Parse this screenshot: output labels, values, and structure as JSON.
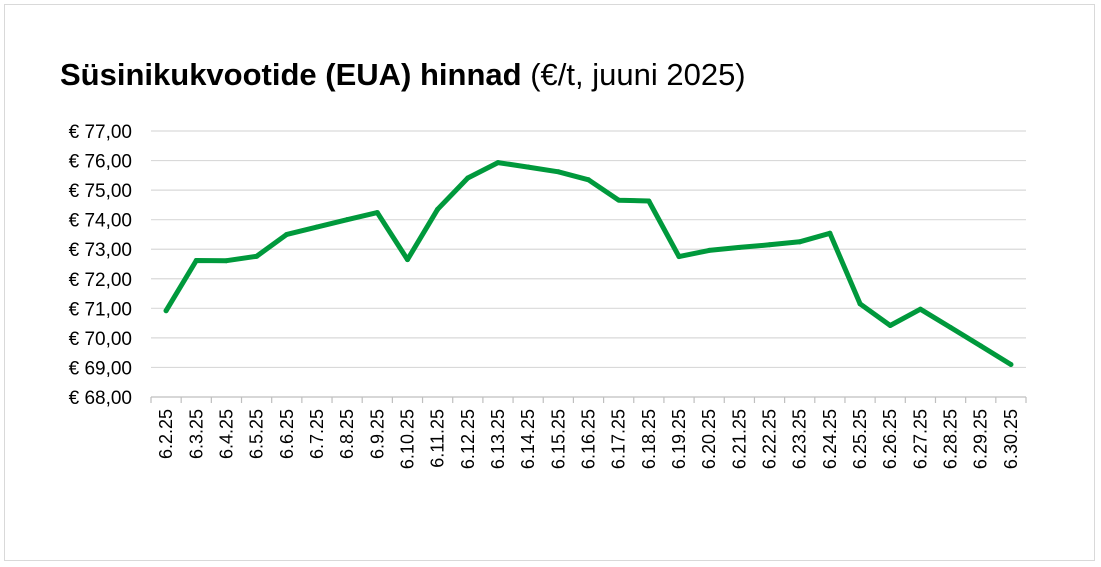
{
  "chart_data": {
    "type": "line",
    "title": "Süsinikukvootide (EUA) hinnad",
    "subtitle": "(€/t, juuni 2025)",
    "xlabel": "",
    "ylabel": "",
    "ylim": [
      68,
      77
    ],
    "y_ticks": [
      "€ 68,00",
      "€ 69,00",
      "€ 70,00",
      "€ 71,00",
      "€ 72,00",
      "€ 73,00",
      "€ 74,00",
      "€ 75,00",
      "€ 76,00",
      "€ 77,00"
    ],
    "categories": [
      "6.2.25",
      "6.3.25",
      "6.4.25",
      "6.5.25",
      "6.6.25",
      "6.7.25",
      "6.8.25",
      "6.9.25",
      "6.10.25",
      "6.11.25",
      "6.12.25",
      "6.13.25",
      "6.14.25",
      "6.15.25",
      "6.16.25",
      "6.17.25",
      "6.18.25",
      "6.19.25",
      "6.20.25",
      "6.21.25",
      "6.22.25",
      "6.23.25",
      "6.24.25",
      "6.25.25",
      "6.26.25",
      "6.27.25",
      "6.28.25",
      "6.29.25",
      "6.30.25"
    ],
    "series": [
      {
        "color": "#00993c",
        "values": [
          70.92,
          72.62,
          72.61,
          72.76,
          73.5,
          73.75,
          74.0,
          74.24,
          72.65,
          74.35,
          75.41,
          75.93,
          75.78,
          75.62,
          75.35,
          74.66,
          74.63,
          72.75,
          72.96,
          73.06,
          73.15,
          73.25,
          73.54,
          71.15,
          70.42,
          70.97,
          70.35,
          69.73,
          69.1
        ]
      }
    ],
    "grid": true,
    "legend": "none"
  }
}
